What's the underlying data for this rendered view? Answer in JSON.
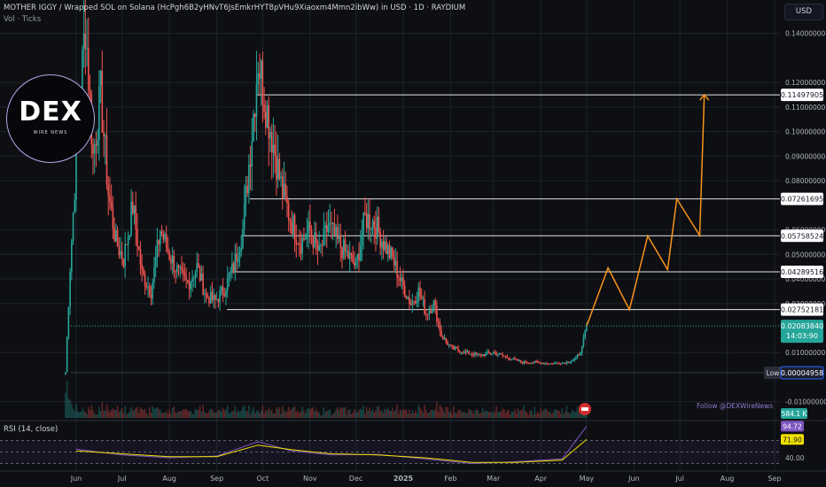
{
  "header": {
    "title": "MOTHER IGGY / Wrapped SOL on Solana (HcPgh6B2yHNvT6JsEmkrHYT8pVHu9Xiaoxm4Mmn2ibWw) in USD · 1D · RAYDIUM",
    "volume_label": "Vol · Ticks"
  },
  "currency_button": "USD",
  "logo": {
    "text": "DEX",
    "subtext": "WIRE NEWS"
  },
  "watermark": "Follow @DEXWireNews",
  "colors": {
    "up": "#26a69a",
    "down": "#ef5350",
    "projection": "#f7931a",
    "rsi": "#7e57c2",
    "rsi_ma": "#f0e000",
    "grid": "#1e222d"
  },
  "chart_data": [
    {
      "type": "candlestick",
      "x_axis": {
        "tick_labels": [
          "Jun",
          "Jul",
          "Aug",
          "Sep",
          "Oct",
          "Nov",
          "Dec",
          "2025",
          "Feb",
          "Mar",
          "Apr",
          "May",
          "Jun",
          "Jul",
          "Aug",
          "Sep"
        ]
      },
      "y_axis": {
        "currency": "USD",
        "range": [
          -0.013,
          0.15
        ],
        "tick_labels": [
          "0.14000000",
          "0.12000000",
          "0.11000000",
          "0.10000000",
          "0.09000000",
          "0.08000000",
          "0.06000000",
          "0.05000000",
          "0.04000000",
          "0.03000000",
          "0.01000000",
          "-0.01000000"
        ]
      },
      "close_series": [
        {
          "x": "2024-05-25",
          "close": 0.002
        },
        {
          "x": "2024-05-28",
          "close": 0.045
        },
        {
          "x": "2024-06-02",
          "close": 0.1
        },
        {
          "x": "2024-06-07",
          "close": 0.145
        },
        {
          "x": "2024-06-12",
          "close": 0.09
        },
        {
          "x": "2024-06-17",
          "close": 0.115
        },
        {
          "x": "2024-06-22",
          "close": 0.075
        },
        {
          "x": "2024-06-27",
          "close": 0.055
        },
        {
          "x": "2024-07-02",
          "close": 0.048
        },
        {
          "x": "2024-07-08",
          "close": 0.07
        },
        {
          "x": "2024-07-14",
          "close": 0.042
        },
        {
          "x": "2024-07-20",
          "close": 0.035
        },
        {
          "x": "2024-07-26",
          "close": 0.06
        },
        {
          "x": "2024-08-01",
          "close": 0.05
        },
        {
          "x": "2024-08-07",
          "close": 0.042
        },
        {
          "x": "2024-08-13",
          "close": 0.038
        },
        {
          "x": "2024-08-19",
          "close": 0.045
        },
        {
          "x": "2024-08-25",
          "close": 0.033
        },
        {
          "x": "2024-08-31",
          "close": 0.031
        },
        {
          "x": "2024-09-06",
          "close": 0.036
        },
        {
          "x": "2024-09-12",
          "close": 0.045
        },
        {
          "x": "2024-09-18",
          "close": 0.06
        },
        {
          "x": "2024-09-24",
          "close": 0.1
        },
        {
          "x": "2024-09-28",
          "close": 0.13
        },
        {
          "x": "2024-10-02",
          "close": 0.115
        },
        {
          "x": "2024-10-08",
          "close": 0.095
        },
        {
          "x": "2024-10-14",
          "close": 0.075
        },
        {
          "x": "2024-10-20",
          "close": 0.063
        },
        {
          "x": "2024-10-26",
          "close": 0.055
        },
        {
          "x": "2024-11-01",
          "close": 0.06
        },
        {
          "x": "2024-11-07",
          "close": 0.05
        },
        {
          "x": "2024-11-13",
          "close": 0.062
        },
        {
          "x": "2024-11-19",
          "close": 0.055
        },
        {
          "x": "2024-11-25",
          "close": 0.05
        },
        {
          "x": "2024-12-01",
          "close": 0.045
        },
        {
          "x": "2024-12-07",
          "close": 0.065
        },
        {
          "x": "2024-12-13",
          "close": 0.063
        },
        {
          "x": "2024-12-19",
          "close": 0.055
        },
        {
          "x": "2024-12-25",
          "close": 0.048
        },
        {
          "x": "2024-12-31",
          "close": 0.038
        },
        {
          "x": "2025-01-06",
          "close": 0.03
        },
        {
          "x": "2025-01-11",
          "close": 0.035
        },
        {
          "x": "2025-01-16",
          "close": 0.026
        },
        {
          "x": "2025-01-21",
          "close": 0.03
        },
        {
          "x": "2025-01-26",
          "close": 0.017
        },
        {
          "x": "2025-02-01",
          "close": 0.012
        },
        {
          "x": "2025-02-10",
          "close": 0.01
        },
        {
          "x": "2025-02-20",
          "close": 0.009
        },
        {
          "x": "2025-03-01",
          "close": 0.01
        },
        {
          "x": "2025-03-10",
          "close": 0.008
        },
        {
          "x": "2025-03-20",
          "close": 0.006
        },
        {
          "x": "2025-03-30",
          "close": 0.006
        },
        {
          "x": "2025-04-08",
          "close": 0.0055
        },
        {
          "x": "2025-04-18",
          "close": 0.006
        },
        {
          "x": "2025-04-24",
          "close": 0.0075
        },
        {
          "x": "2025-04-28",
          "close": 0.012
        },
        {
          "x": "2025-05-01",
          "close": 0.0208
        }
      ],
      "horizontal_levels": [
        {
          "price": 0.11497905,
          "label": "0.11497905"
        },
        {
          "price": 0.07261695,
          "label": "0.07261695"
        },
        {
          "price": 0.05758524,
          "label": "0.05758524"
        },
        {
          "price": 0.04289516,
          "label": "0.04289516"
        },
        {
          "price": 0.02752181,
          "label": "0.02752181"
        }
      ],
      "last_price": {
        "value": "0.02083840",
        "countdown": "14:03:90"
      },
      "low": {
        "label": "Low",
        "value": "0.00004958"
      },
      "volume": {
        "last_value": "584.1 K"
      },
      "projection_path": [
        {
          "x": "2025-05-01",
          "y": 0.0208
        },
        {
          "x": "2025-05-15",
          "y": 0.0445
        },
        {
          "x": "2025-05-29",
          "y": 0.0275
        },
        {
          "x": "2025-06-10",
          "y": 0.0575
        },
        {
          "x": "2025-06-23",
          "y": 0.0438
        },
        {
          "x": "2025-06-29",
          "y": 0.0726
        },
        {
          "x": "2025-07-14",
          "y": 0.0577
        },
        {
          "x": "2025-07-17",
          "y": 0.115
        }
      ]
    },
    {
      "type": "line",
      "title": "RSI (14, close)",
      "y_axis": {
        "range": [
          20,
          100
        ],
        "tick_labels": [
          "40.00"
        ]
      },
      "levels": [
        70,
        50,
        30
      ],
      "series": [
        {
          "x": [
            "2024-06-01",
            "2024-07-01",
            "2024-08-01",
            "2024-09-01",
            "2024-09-28",
            "2024-10-20",
            "2024-11-15",
            "2024-12-15",
            "2025-01-15",
            "2025-02-15",
            "2025-03-15",
            "2025-04-15",
            "2025-05-01"
          ],
          "values": [
            55,
            45,
            40,
            43,
            68,
            52,
            45,
            46,
            38,
            30,
            33,
            38,
            94.72
          ]
        },
        {
          "x": [
            "2024-06-01",
            "2024-07-01",
            "2024-08-01",
            "2024-09-01",
            "2024-09-28",
            "2024-10-20",
            "2024-11-15",
            "2024-12-15",
            "2025-01-15",
            "2025-02-15",
            "2025-03-15",
            "2025-04-15",
            "2025-05-01"
          ],
          "values": [
            52,
            47,
            42,
            42,
            62,
            54,
            47,
            45,
            40,
            32,
            32,
            36,
            71.9
          ]
        }
      ],
      "value_labels": [
        "94.72",
        "71.90"
      ]
    }
  ]
}
